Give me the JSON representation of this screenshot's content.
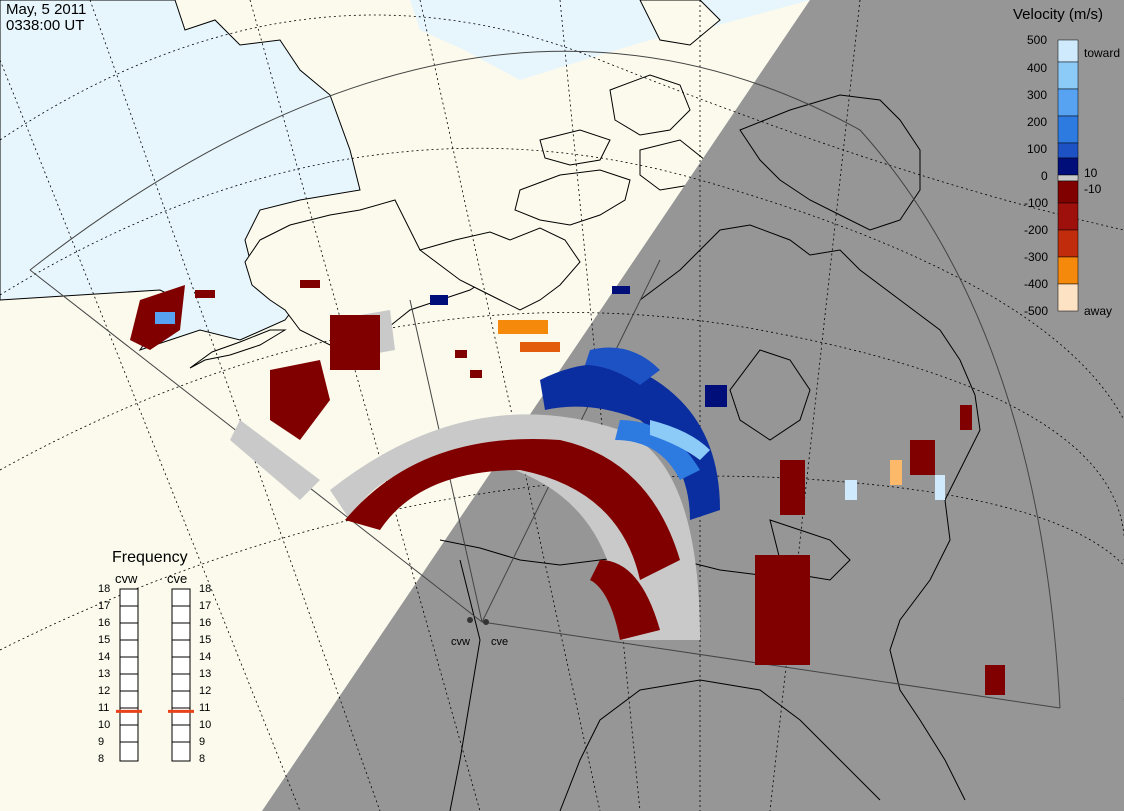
{
  "header": {
    "date": "May, 5 2011",
    "time": "0338:00 UT"
  },
  "legend": {
    "title": "Velocity (m/s)",
    "ticks": [
      "500",
      "400",
      "300",
      "200",
      "100",
      "0",
      "-100",
      "-200",
      "-300",
      "-400",
      "-500"
    ],
    "toward_label": "toward",
    "away_label": "away",
    "pos_threshold": "10",
    "neg_threshold": "-10",
    "colors": [
      "#fde3c4",
      "#fcb96a",
      "#f5890b",
      "#e35b0d",
      "#c12c0c",
      "#9e100c",
      "#800000",
      "#000e7a",
      "#0a2ea0",
      "#1d52c4",
      "#2d7ae0",
      "#57a3f2",
      "#8ccaf8",
      "#cfeafc"
    ]
  },
  "radars": {
    "west": "cvw",
    "east": "cve"
  },
  "frequency": {
    "title": "Frequency",
    "columns": [
      "cvw",
      "cve"
    ],
    "ticks": [
      "18",
      "17",
      "16",
      "15",
      "14",
      "13",
      "12",
      "11",
      "10",
      "9",
      "8"
    ],
    "values_mhz": [
      10.8,
      10.8
    ],
    "marker_color": "#e8421a"
  },
  "map": {
    "ocean_color": "#e7f6fd",
    "land_color": "#fbfaed",
    "night_color": "#969696",
    "ground_scatter_color": "#c9c9c9"
  }
}
